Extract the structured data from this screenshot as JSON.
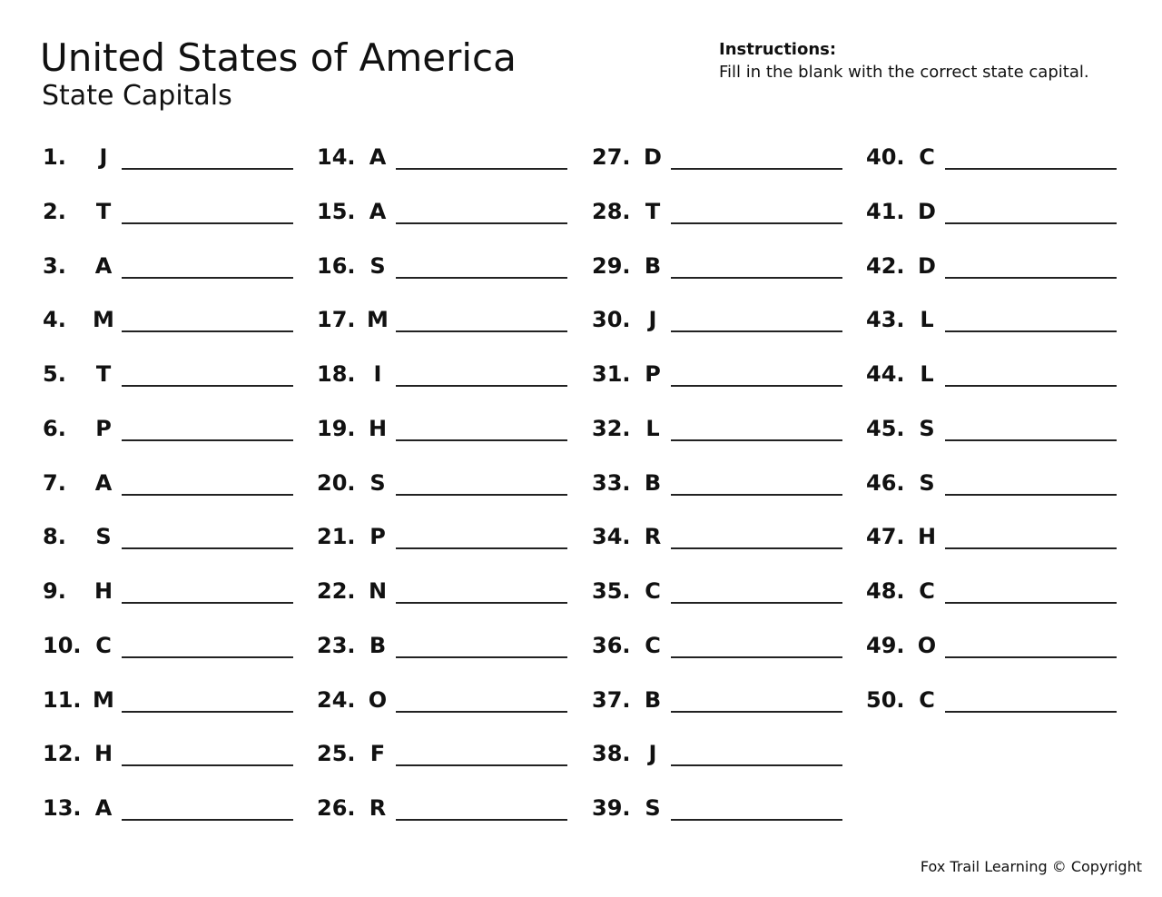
{
  "header": {
    "title": "United States of America",
    "subtitle": "State Capitals"
  },
  "instructions": {
    "heading": "Instructions:",
    "text": "Fill in the blank with the correct state capital."
  },
  "columns": [
    [
      {
        "num": "1.",
        "letter": "J"
      },
      {
        "num": "2.",
        "letter": "T"
      },
      {
        "num": "3.",
        "letter": "A"
      },
      {
        "num": "4.",
        "letter": "M"
      },
      {
        "num": "5.",
        "letter": "T"
      },
      {
        "num": "6.",
        "letter": "P"
      },
      {
        "num": "7.",
        "letter": "A"
      },
      {
        "num": "8.",
        "letter": "S"
      },
      {
        "num": "9.",
        "letter": "H"
      },
      {
        "num": "10.",
        "letter": "C"
      },
      {
        "num": "11.",
        "letter": "M"
      },
      {
        "num": "12.",
        "letter": "H"
      },
      {
        "num": "13.",
        "letter": "A"
      }
    ],
    [
      {
        "num": "14.",
        "letter": "A"
      },
      {
        "num": "15.",
        "letter": "A"
      },
      {
        "num": "16.",
        "letter": "S"
      },
      {
        "num": "17.",
        "letter": "M"
      },
      {
        "num": "18.",
        "letter": "I"
      },
      {
        "num": "19.",
        "letter": "H"
      },
      {
        "num": "20.",
        "letter": "S"
      },
      {
        "num": "21.",
        "letter": "P"
      },
      {
        "num": "22.",
        "letter": "N"
      },
      {
        "num": "23.",
        "letter": "B"
      },
      {
        "num": "24.",
        "letter": "O"
      },
      {
        "num": "25.",
        "letter": "F"
      },
      {
        "num": "26.",
        "letter": "R"
      }
    ],
    [
      {
        "num": "27.",
        "letter": "D"
      },
      {
        "num": "28.",
        "letter": "T"
      },
      {
        "num": "29.",
        "letter": "B"
      },
      {
        "num": "30.",
        "letter": "J"
      },
      {
        "num": "31.",
        "letter": "P"
      },
      {
        "num": "32.",
        "letter": "L"
      },
      {
        "num": "33.",
        "letter": "B"
      },
      {
        "num": "34.",
        "letter": "R"
      },
      {
        "num": "35.",
        "letter": "C"
      },
      {
        "num": "36.",
        "letter": "C"
      },
      {
        "num": "37.",
        "letter": "B"
      },
      {
        "num": "38.",
        "letter": "J"
      },
      {
        "num": "39.",
        "letter": "S"
      }
    ],
    [
      {
        "num": "40.",
        "letter": "C"
      },
      {
        "num": "41.",
        "letter": "D"
      },
      {
        "num": "42.",
        "letter": "D"
      },
      {
        "num": "43.",
        "letter": "L"
      },
      {
        "num": "44.",
        "letter": "L"
      },
      {
        "num": "45.",
        "letter": "S"
      },
      {
        "num": "46.",
        "letter": "S"
      },
      {
        "num": "47.",
        "letter": "H"
      },
      {
        "num": "48.",
        "letter": "C"
      },
      {
        "num": "49.",
        "letter": "O"
      },
      {
        "num": "50.",
        "letter": "C"
      }
    ]
  ],
  "footer": {
    "text": "Fox Trail Learning © Copyright"
  }
}
